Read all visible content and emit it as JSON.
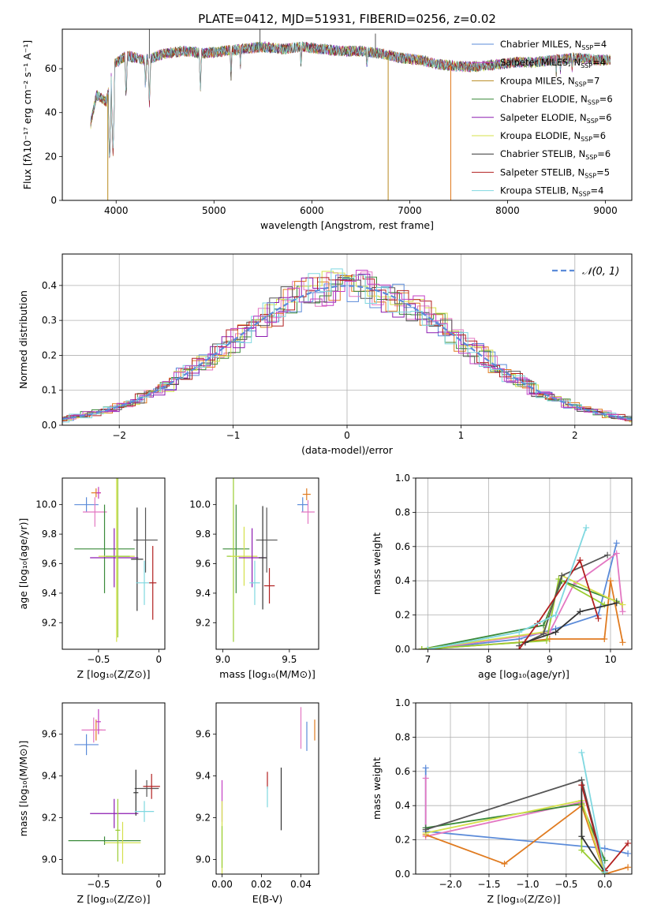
{
  "figure": {
    "title": "PLATE=0412, MJD=51931, FIBERID=0256, z=0.02"
  },
  "colors": {
    "Chabrier MILES": "#5b8bd9",
    "Salpeter MILES": "#c43fc4",
    "Kroupa MILES": "#b88a1f",
    "Chabrier ELODIE": "#3a8a3a",
    "Salpeter ELODIE": "#8c1ab0",
    "Kroupa ELODIE": "#d4e04a",
    "Chabrier STELIB": "#333333",
    "Salpeter STELIB": "#b22020",
    "Kroupa STELIB": "#7fd8e0",
    "pink": "#e377c2",
    "orange": "#e07b20",
    "lime": "#9acd32",
    "dark": "#555555",
    "reference": "#5b8bd9"
  },
  "chart_data": [
    {
      "id": "spectrum",
      "type": "line",
      "xlabel": "wavelength [Angstrom, rest frame]",
      "ylabel": "Flux [fλ10⁻¹⁷ erg cm⁻² s⁻¹ A⁻¹]",
      "xlim": [
        3450,
        9270
      ],
      "ylim": [
        0,
        78
      ],
      "xticks": [
        4000,
        5000,
        6000,
        7000,
        8000,
        9000
      ],
      "yticks": [
        0,
        20,
        40,
        60
      ],
      "legend_position": "top-right",
      "legend": [
        {
          "label": "Chabrier MILES, N",
          "sub": "SSP",
          "suffix": "=4",
          "color": "#5b8bd9"
        },
        {
          "label": "Salpeter MILES, N",
          "sub": "SSP",
          "suffix": "=4",
          "color": "#c43fc4"
        },
        {
          "label": "Kroupa MILES, N",
          "sub": "SSP",
          "suffix": "=7",
          "color": "#b88a1f"
        },
        {
          "label": "Chabrier ELODIE, N",
          "sub": "SSP",
          "suffix": "=6",
          "color": "#3a8a3a"
        },
        {
          "label": "Salpeter ELODIE, N",
          "sub": "SSP",
          "suffix": "=6",
          "color": "#8c1ab0"
        },
        {
          "label": "Kroupa ELODIE, N",
          "sub": "SSP",
          "suffix": "=6",
          "color": "#d4e04a"
        },
        {
          "label": "Chabrier STELIB, N",
          "sub": "SSP",
          "suffix": "=6",
          "color": "#333333"
        },
        {
          "label": "Salpeter STELIB, N",
          "sub": "SSP",
          "suffix": "=5",
          "color": "#b22020"
        },
        {
          "label": "Kroupa STELIB, N",
          "sub": "SSP",
          "suffix": "=4",
          "color": "#7fd8e0"
        }
      ],
      "continuum": [
        [
          3740,
          35
        ],
        [
          3800,
          48
        ],
        [
          3900,
          45
        ],
        [
          3980,
          62
        ],
        [
          4100,
          66
        ],
        [
          4300,
          64
        ],
        [
          4500,
          67
        ],
        [
          4700,
          68
        ],
        [
          4900,
          67
        ],
        [
          5100,
          68
        ],
        [
          5300,
          69
        ],
        [
          5500,
          70
        ],
        [
          5700,
          69
        ],
        [
          5900,
          70
        ],
        [
          6100,
          69
        ],
        [
          6300,
          68
        ],
        [
          6500,
          68
        ],
        [
          6700,
          67
        ],
        [
          6900,
          65
        ],
        [
          7100,
          64
        ],
        [
          7300,
          62
        ],
        [
          7500,
          61
        ],
        [
          7700,
          61
        ],
        [
          7900,
          62
        ],
        [
          8100,
          63
        ],
        [
          8300,
          63
        ],
        [
          8500,
          64
        ],
        [
          8700,
          65
        ],
        [
          8900,
          64
        ],
        [
          9050,
          64
        ]
      ],
      "absorption_lines": [
        [
          3934,
          18
        ],
        [
          3968,
          22
        ],
        [
          4102,
          46
        ],
        [
          4300,
          50
        ],
        [
          4340,
          44
        ],
        [
          4861,
          50
        ],
        [
          5175,
          55
        ],
        [
          5270,
          60
        ],
        [
          5890,
          60
        ],
        [
          6563,
          58
        ],
        [
          8498,
          58
        ],
        [
          8542,
          56
        ],
        [
          8662,
          57
        ]
      ],
      "spikes": [
        [
          3915,
          -2,
          "#b88a1f"
        ],
        [
          4340,
          78,
          "#555555"
        ],
        [
          5470,
          78,
          "#555555"
        ],
        [
          6780,
          -2,
          "#b88a1f"
        ],
        [
          7420,
          -2,
          "#e07b20"
        ],
        [
          6650,
          76,
          "#555555"
        ]
      ]
    },
    {
      "id": "residuals",
      "type": "bar",
      "xlabel": "(data-model)/error",
      "ylabel": "Normed distribution",
      "xlim": [
        -2.5,
        2.5
      ],
      "ylim": [
        0,
        0.49
      ],
      "xticks": [
        -2,
        -1,
        0,
        1,
        2
      ],
      "yticks": [
        0.0,
        0.1,
        0.2,
        0.3,
        0.4
      ],
      "grid": true,
      "legend_position": "top-right",
      "reference_label": "𝒩(0, 1)",
      "bin_width": 0.1
    },
    {
      "id": "age-vs-Z",
      "type": "scatter",
      "xlabel": "Z [log₁₀(Z/Z⊙)]",
      "ylabel": "age  [log₁₀(age/yr)]",
      "xlim": [
        -0.8,
        0.05
      ],
      "ylim": [
        9.02,
        10.18
      ],
      "xticks": [
        -0.5,
        0.0
      ],
      "yticks": [
        9.2,
        9.4,
        9.6,
        9.8,
        10.0
      ],
      "points": [
        {
          "x": -0.6,
          "y": 10.0,
          "xerr": 0.1,
          "yerr": 0.05,
          "color": "#5b8bd9"
        },
        {
          "x": -0.52,
          "y": 10.08,
          "xerr": 0.04,
          "yerr": 0.03,
          "color": "#e07b20"
        },
        {
          "x": -0.53,
          "y": 9.95,
          "xerr": 0.1,
          "yerr": 0.1,
          "color": "#e377c2"
        },
        {
          "x": -0.5,
          "y": 10.08,
          "xerr": 0.02,
          "yerr": 0.04,
          "color": "#c43fc4"
        },
        {
          "x": -0.45,
          "y": 9.7,
          "xerr": 0.25,
          "yerr": 0.3,
          "color": "#3a8a3a"
        },
        {
          "x": -0.37,
          "y": 9.64,
          "xerr": 0.2,
          "yerr": 0.2,
          "color": "#8c1ab0"
        },
        {
          "x": -0.35,
          "y": 9.65,
          "xerr": 0.15,
          "yerr": 0.58,
          "color": "#d4e04a"
        },
        {
          "x": -0.34,
          "y": 9.65,
          "xerr": 0.1,
          "yerr": 0.55,
          "color": "#9acd32"
        },
        {
          "x": -0.11,
          "y": 9.76,
          "xerr": 0.1,
          "yerr": 0.22,
          "color": "#555555"
        },
        {
          "x": -0.18,
          "y": 9.63,
          "xerr": 0.05,
          "yerr": 0.35,
          "color": "#333333"
        },
        {
          "x": -0.12,
          "y": 9.47,
          "xerr": 0.07,
          "yerr": 0.15,
          "color": "#7fd8e0"
        },
        {
          "x": -0.05,
          "y": 9.47,
          "xerr": 0.03,
          "yerr": 0.25,
          "color": "#b22020"
        }
      ]
    },
    {
      "id": "age-vs-mass",
      "type": "scatter",
      "xlabel": "mass [log₁₀(M/M⊙)]",
      "xlim": [
        8.95,
        9.72
      ],
      "ylim": [
        9.02,
        10.18
      ],
      "xticks": [
        9.0,
        9.5
      ],
      "yticks": [
        9.2,
        9.4,
        9.6,
        9.8,
        10.0
      ],
      "points": [
        {
          "x": 9.6,
          "y": 10.0,
          "xerr": 0.04,
          "yerr": 0.05,
          "color": "#5b8bd9"
        },
        {
          "x": 9.63,
          "y": 10.07,
          "xerr": 0.03,
          "yerr": 0.04,
          "color": "#e07b20"
        },
        {
          "x": 9.64,
          "y": 9.95,
          "xerr": 0.05,
          "yerr": 0.08,
          "color": "#e377c2"
        },
        {
          "x": 9.1,
          "y": 9.7,
          "xerr": 0.1,
          "yerr": 0.3,
          "color": "#3a8a3a"
        },
        {
          "x": 9.08,
          "y": 9.65,
          "xerr": 0.05,
          "yerr": 0.58,
          "color": "#9acd32"
        },
        {
          "x": 9.16,
          "y": 9.65,
          "xerr": 0.1,
          "yerr": 0.2,
          "color": "#d4e04a"
        },
        {
          "x": 9.22,
          "y": 9.64,
          "xerr": 0.1,
          "yerr": 0.2,
          "color": "#8c1ab0"
        },
        {
          "x": 9.33,
          "y": 9.76,
          "xerr": 0.08,
          "yerr": 0.22,
          "color": "#555555"
        },
        {
          "x": 9.3,
          "y": 9.64,
          "xerr": 0.03,
          "yerr": 0.35,
          "color": "#333333"
        },
        {
          "x": 9.24,
          "y": 9.47,
          "xerr": 0.04,
          "yerr": 0.15,
          "color": "#7fd8e0"
        },
        {
          "x": 9.35,
          "y": 9.45,
          "xerr": 0.04,
          "yerr": 0.12,
          "color": "#b22020"
        }
      ]
    },
    {
      "id": "massweight-vs-age",
      "type": "line",
      "xlabel": "age  [log₁₀(age/yr)]",
      "ylabel": "mass weight",
      "xlim": [
        6.8,
        10.35
      ],
      "ylim": [
        0,
        1.0
      ],
      "xticks": [
        7,
        8,
        9,
        10
      ],
      "yticks": [
        0.0,
        0.2,
        0.4,
        0.6,
        0.8,
        1.0
      ],
      "grid": true,
      "series": [
        {
          "color": "#5b8bd9",
          "x": [
            7.0,
            8.5,
            9.1,
            9.8,
            10.1
          ],
          "y": [
            0.0,
            0.06,
            0.12,
            0.2,
            0.62
          ]
        },
        {
          "color": "#e377c2",
          "x": [
            7.0,
            9.0,
            9.4,
            10.1,
            10.2
          ],
          "y": [
            0.0,
            0.1,
            0.38,
            0.56,
            0.22
          ]
        },
        {
          "color": "#e07b20",
          "x": [
            6.9,
            8.5,
            9.0,
            9.9,
            10.0,
            10.2
          ],
          "y": [
            0.0,
            0.04,
            0.06,
            0.06,
            0.4,
            0.04
          ]
        },
        {
          "color": "#3a8a3a",
          "x": [
            6.9,
            8.9,
            9.2,
            10.1
          ],
          "y": [
            0.0,
            0.14,
            0.4,
            0.28
          ]
        },
        {
          "color": "#d4e04a",
          "x": [
            6.9,
            8.9,
            9.2,
            10.2
          ],
          "y": [
            0.0,
            0.1,
            0.43,
            0.26
          ]
        },
        {
          "color": "#9acd32",
          "x": [
            6.9,
            8.95,
            9.15,
            9.9
          ],
          "y": [
            0.0,
            0.05,
            0.41,
            0.26
          ]
        },
        {
          "color": "#555555",
          "x": [
            8.5,
            8.9,
            9.2,
            9.95
          ],
          "y": [
            0.02,
            0.09,
            0.43,
            0.55
          ]
        },
        {
          "color": "#333333",
          "x": [
            8.6,
            9.1,
            9.5,
            10.1
          ],
          "y": [
            0.04,
            0.1,
            0.22,
            0.27
          ]
        },
        {
          "color": "#b22020",
          "x": [
            8.5,
            8.8,
            9.5,
            9.8
          ],
          "y": [
            0.0,
            0.15,
            0.52,
            0.18
          ]
        },
        {
          "color": "#7fd8e0",
          "x": [
            7.0,
            8.5,
            9.1,
            9.6
          ],
          "y": [
            0.0,
            0.1,
            0.2,
            0.71
          ]
        }
      ]
    },
    {
      "id": "mass-vs-Z",
      "type": "scatter",
      "xlabel": "Z [log₁₀(Z/Z⊙)]",
      "ylabel": "mass [log₁₀(M/M⊙)]",
      "xlim": [
        -0.8,
        0.05
      ],
      "ylim": [
        8.93,
        9.75
      ],
      "xticks": [
        -0.5,
        0.0
      ],
      "yticks": [
        9.0,
        9.2,
        9.4,
        9.6
      ],
      "points": [
        {
          "x": -0.6,
          "y": 9.55,
          "xerr": 0.1,
          "yerr": 0.05,
          "color": "#5b8bd9"
        },
        {
          "x": -0.52,
          "y": 9.62,
          "xerr": 0.05,
          "yerr": 0.05,
          "color": "#e07b20"
        },
        {
          "x": -0.54,
          "y": 9.62,
          "xerr": 0.1,
          "yerr": 0.06,
          "color": "#e377c2"
        },
        {
          "x": -0.5,
          "y": 9.66,
          "xerr": 0.02,
          "yerr": 0.06,
          "color": "#c43fc4"
        },
        {
          "x": -0.45,
          "y": 9.09,
          "xerr": 0.3,
          "yerr": 0.02,
          "color": "#3a8a3a"
        },
        {
          "x": -0.37,
          "y": 9.22,
          "xerr": 0.2,
          "yerr": 0.07,
          "color": "#8c1ab0"
        },
        {
          "x": -0.3,
          "y": 9.08,
          "xerr": 0.15,
          "yerr": 0.1,
          "color": "#d4e04a"
        },
        {
          "x": -0.34,
          "y": 9.14,
          "xerr": 0.02,
          "yerr": 0.15,
          "color": "#9acd32"
        },
        {
          "x": -0.1,
          "y": 9.34,
          "xerr": 0.1,
          "yerr": 0.04,
          "color": "#555555"
        },
        {
          "x": -0.19,
          "y": 9.32,
          "xerr": 0.02,
          "yerr": 0.11,
          "color": "#333333"
        },
        {
          "x": -0.12,
          "y": 9.23,
          "xerr": 0.08,
          "yerr": 0.05,
          "color": "#7fd8e0"
        },
        {
          "x": -0.06,
          "y": 9.35,
          "xerr": 0.07,
          "yerr": 0.06,
          "color": "#b22020"
        }
      ]
    },
    {
      "id": "mass-vs-ebv",
      "type": "scatter",
      "xlabel": "E(B-V)",
      "xlim": [
        -0.003,
        0.049
      ],
      "ylim": [
        8.93,
        9.75
      ],
      "xticks": [
        0.0,
        0.02,
        0.04
      ],
      "yticks": [
        9.0,
        9.2,
        9.4,
        9.6
      ],
      "points": [
        {
          "x": 0.0,
          "y": 9.28,
          "xerr": 0,
          "yerr": 0.1,
          "color": "#c43fc4"
        },
        {
          "x": 0.0,
          "y": 9.1,
          "xerr": 0,
          "yerr": 0.18,
          "color": "#d4e04a"
        },
        {
          "x": 0.0,
          "y": 9.06,
          "xerr": 0,
          "yerr": 0.1,
          "color": "#9acd32"
        },
        {
          "x": 0.023,
          "y": 9.38,
          "xerr": 0,
          "yerr": 0.04,
          "color": "#b22020"
        },
        {
          "x": 0.023,
          "y": 9.3,
          "xerr": 0,
          "yerr": 0.05,
          "color": "#7fd8e0"
        },
        {
          "x": 0.03,
          "y": 9.29,
          "xerr": 0,
          "yerr": 0.15,
          "color": "#333333"
        },
        {
          "x": 0.04,
          "y": 9.63,
          "xerr": 0,
          "yerr": 0.1,
          "color": "#e377c2"
        },
        {
          "x": 0.043,
          "y": 9.59,
          "xerr": 0,
          "yerr": 0.07,
          "color": "#5b8bd9"
        },
        {
          "x": 0.047,
          "y": 9.62,
          "xerr": 0,
          "yerr": 0.05,
          "color": "#e07b20"
        }
      ]
    },
    {
      "id": "massweight-vs-Z",
      "type": "line",
      "xlabel": "Z [log₁₀(Z/Z⊙)]",
      "ylabel": "mass weight",
      "xlim": [
        -2.45,
        0.35
      ],
      "ylim": [
        0,
        1.0
      ],
      "xticks": [
        -2.0,
        -1.5,
        -1.0,
        -0.5,
        0.0
      ],
      "yticks": [
        0.0,
        0.2,
        0.4,
        0.6,
        0.8,
        1.0
      ],
      "grid": true,
      "series": [
        {
          "color": "#5b8bd9",
          "x": [
            -2.32,
            -2.32,
            0.0,
            0.3
          ],
          "y": [
            0.62,
            0.25,
            0.15,
            0.12
          ]
        },
        {
          "color": "#e377c2",
          "x": [
            -2.32,
            -2.32,
            -0.3,
            0.0
          ],
          "y": [
            0.56,
            0.22,
            0.42,
            0.02
          ]
        },
        {
          "color": "#e07b20",
          "x": [
            -2.32,
            -1.3,
            -0.3,
            0.0,
            0.3
          ],
          "y": [
            0.23,
            0.06,
            0.4,
            0.0,
            0.04
          ]
        },
        {
          "color": "#3a8a3a",
          "x": [
            -2.32,
            -0.3,
            0.0
          ],
          "y": [
            0.27,
            0.41,
            0.08
          ]
        },
        {
          "color": "#d4e04a",
          "x": [
            -2.32,
            -0.3,
            0.0
          ],
          "y": [
            0.24,
            0.43,
            0.0
          ]
        },
        {
          "color": "#9acd32",
          "x": [
            -0.3,
            -0.3,
            0.0
          ],
          "y": [
            0.41,
            0.14,
            0.0
          ]
        },
        {
          "color": "#555555",
          "x": [
            -2.32,
            -0.3,
            0.0
          ],
          "y": [
            0.26,
            0.55,
            0.02
          ]
        },
        {
          "color": "#333333",
          "x": [
            -0.3,
            -0.3,
            0.0
          ],
          "y": [
            0.52,
            0.22,
            0.01
          ]
        },
        {
          "color": "#b22020",
          "x": [
            -0.3,
            0.0,
            0.3
          ],
          "y": [
            0.52,
            0.02,
            0.18
          ]
        },
        {
          "color": "#7fd8e0",
          "x": [
            -0.3,
            0.0
          ],
          "y": [
            0.71,
            0.01
          ]
        }
      ]
    }
  ]
}
